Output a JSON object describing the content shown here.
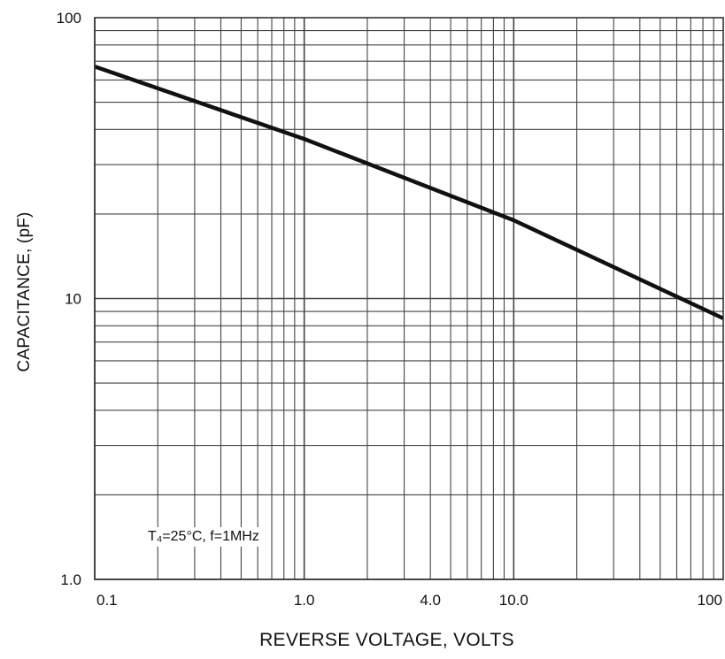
{
  "chart_data": {
    "type": "line",
    "title": "",
    "xlabel": "REVERSE VOLTAGE, VOLTS",
    "ylabel": "CAPACITANCE, (pF)",
    "x_scale": "log",
    "y_scale": "log",
    "xlim": [
      0.1,
      100
    ],
    "ylim": [
      1.0,
      100
    ],
    "grid": true,
    "x_tick_labels": [
      {
        "value": 0.1,
        "label": "0.1"
      },
      {
        "value": 1,
        "label": "1.0"
      },
      {
        "value": 4,
        "label": "4.0"
      },
      {
        "value": 10,
        "label": "10.0"
      },
      {
        "value": 100,
        "label": "100"
      }
    ],
    "y_tick_labels": [
      {
        "value": 1,
        "label": "1.0"
      },
      {
        "value": 10,
        "label": "10"
      },
      {
        "value": 100,
        "label": "100"
      }
    ],
    "annotation": "T₄=25°C, f=1MHz",
    "series": [
      {
        "color": "#111111",
        "points": [
          {
            "x": 0.1,
            "y": 67
          },
          {
            "x": 1,
            "y": 37
          },
          {
            "x": 10,
            "y": 19
          },
          {
            "x": 100,
            "y": 8.5
          }
        ]
      }
    ]
  }
}
